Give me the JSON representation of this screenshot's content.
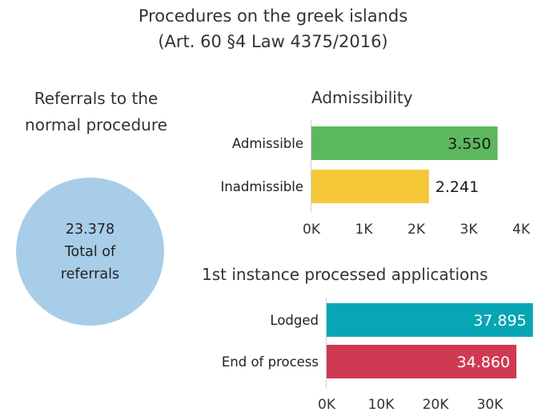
{
  "header": {
    "title_line1": "Procedures on the greek islands",
    "title_line2": "(Art. 60 §4 Law 4375/2016)"
  },
  "referrals": {
    "heading_line1": "Referrals to the",
    "heading_line2": "normal procedure",
    "value": "23.378",
    "label_line1": "Total of",
    "label_line2": "referrals",
    "color": "#a8cde8"
  },
  "chart_data": [
    {
      "type": "bar",
      "orientation": "horizontal",
      "title": "Admissibility",
      "categories": [
        "Admissible",
        "Inadmissible"
      ],
      "values": [
        3550,
        2241
      ],
      "value_labels": [
        "3.550",
        "2.241"
      ],
      "colors": [
        "#5cb85c",
        "#f5c83a"
      ],
      "xlim": [
        0,
        4000
      ],
      "ticks": [
        0,
        1000,
        2000,
        3000,
        4000
      ],
      "tick_labels": [
        "0K",
        "1K",
        "2K",
        "3K",
        "4K"
      ],
      "label_inside": [
        true,
        false
      ],
      "grid": false
    },
    {
      "type": "bar",
      "orientation": "horizontal",
      "title": "1st instance processed applications",
      "categories": [
        "Lodged",
        "End of process"
      ],
      "values": [
        37895,
        34860
      ],
      "value_labels": [
        "37.895",
        "34.860"
      ],
      "colors": [
        "#08a5b5",
        "#cf3a52"
      ],
      "xlim": [
        0,
        40000
      ],
      "ticks": [
        0,
        10000,
        20000,
        30000
      ],
      "tick_labels": [
        "0K",
        "10K",
        "20K",
        "30K"
      ],
      "label_inside": [
        true,
        true
      ],
      "grid": false
    }
  ]
}
